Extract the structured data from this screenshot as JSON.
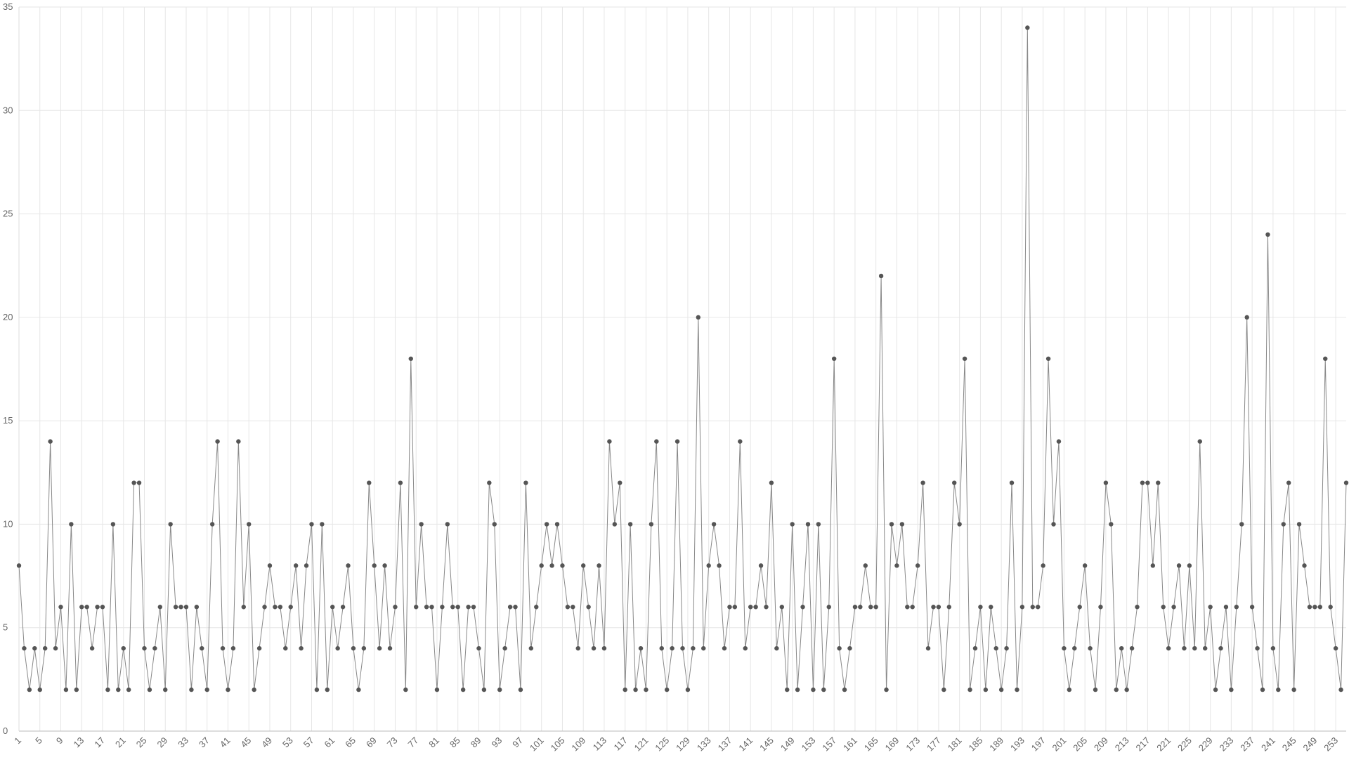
{
  "chart_data": {
    "type": "line",
    "x": [
      1,
      2,
      3,
      4,
      5,
      6,
      7,
      8,
      9,
      10,
      11,
      12,
      13,
      14,
      15,
      16,
      17,
      18,
      19,
      20,
      21,
      22,
      23,
      24,
      25,
      26,
      27,
      28,
      29,
      30,
      31,
      32,
      33,
      34,
      35,
      36,
      37,
      38,
      39,
      40,
      41,
      42,
      43,
      44,
      45,
      46,
      47,
      48,
      49,
      50,
      51,
      52,
      53,
      54,
      55,
      56,
      57,
      58,
      59,
      60,
      61,
      62,
      63,
      64,
      65,
      66,
      67,
      68,
      69,
      70,
      71,
      72,
      73,
      74,
      75,
      76,
      77,
      78,
      79,
      80,
      81,
      82,
      83,
      84,
      85,
      86,
      87,
      88,
      89,
      90,
      91,
      92,
      93,
      94,
      95,
      96,
      97,
      98,
      99,
      100,
      101,
      102,
      103,
      104,
      105,
      106,
      107,
      108,
      109,
      110,
      111,
      112,
      113,
      114,
      115,
      116,
      117,
      118,
      119,
      120,
      121,
      122,
      123,
      124,
      125,
      126,
      127,
      128,
      129,
      130,
      131,
      132,
      133,
      134,
      135,
      136,
      137,
      138,
      139,
      140,
      141,
      142,
      143,
      144,
      145,
      146,
      147,
      148,
      149,
      150,
      151,
      152,
      153,
      154,
      155,
      156,
      157,
      158,
      159,
      160,
      161,
      162,
      163,
      164,
      165,
      166,
      167,
      168,
      169,
      170,
      171,
      172,
      173,
      174,
      175,
      176,
      177,
      178,
      179,
      180,
      181,
      182,
      183,
      184,
      185,
      186,
      187,
      188,
      189,
      190,
      191,
      192,
      193,
      194,
      195,
      196,
      197,
      198,
      199,
      200,
      201,
      202,
      203,
      204,
      205,
      206,
      207,
      208,
      209,
      210,
      211,
      212,
      213,
      214,
      215,
      216,
      217,
      218,
      219,
      220,
      221,
      222,
      223,
      224,
      225,
      226,
      227,
      228,
      229,
      230,
      231,
      232,
      233,
      234,
      235,
      236,
      237,
      238,
      239,
      240,
      241,
      242,
      243,
      244,
      245,
      246,
      247,
      248,
      249,
      250,
      251,
      252,
      253,
      254,
      255
    ],
    "values": [
      8,
      4,
      2,
      4,
      2,
      4,
      14,
      4,
      6,
      2,
      10,
      2,
      6,
      6,
      4,
      6,
      6,
      2,
      10,
      2,
      4,
      2,
      12,
      12,
      4,
      2,
      4,
      6,
      2,
      10,
      6,
      6,
      6,
      2,
      6,
      4,
      2,
      10,
      14,
      4,
      2,
      4,
      14,
      6,
      10,
      2,
      4,
      6,
      8,
      6,
      6,
      4,
      6,
      8,
      4,
      8,
      10,
      2,
      10,
      2,
      6,
      4,
      6,
      8,
      4,
      2,
      4,
      12,
      8,
      4,
      8,
      4,
      6,
      12,
      2,
      18,
      6,
      10,
      6,
      6,
      2,
      6,
      10,
      6,
      6,
      2,
      6,
      6,
      4,
      2,
      12,
      10,
      2,
      4,
      6,
      6,
      2,
      12,
      4,
      6,
      8,
      10,
      8,
      10,
      8,
      6,
      6,
      4,
      8,
      6,
      4,
      8,
      4,
      14,
      10,
      12,
      2,
      10,
      2,
      4,
      2,
      10,
      14,
      4,
      2,
      4,
      14,
      4,
      2,
      4,
      20,
      4,
      8,
      10,
      8,
      4,
      6,
      6,
      14,
      4,
      6,
      6,
      8,
      6,
      12,
      4,
      6,
      2,
      10,
      2,
      6,
      10,
      2,
      10,
      2,
      6,
      18,
      4,
      2,
      4,
      6,
      6,
      8,
      6,
      6,
      22,
      2,
      10,
      8,
      10,
      6,
      6,
      8,
      12,
      4,
      6,
      6,
      2,
      6,
      12,
      10,
      18,
      2,
      4,
      6,
      2,
      6,
      4,
      2,
      4,
      12,
      2,
      6,
      34,
      6,
      6,
      8,
      18,
      10,
      14,
      4,
      2,
      4,
      6,
      8,
      4,
      2,
      6,
      12,
      10,
      2,
      4,
      2,
      4,
      6,
      12,
      12,
      8,
      12,
      6,
      4,
      6,
      8,
      4,
      8,
      4,
      14,
      4,
      6,
      2,
      4,
      6,
      2,
      6,
      10,
      20,
      6,
      4,
      2,
      24,
      4,
      2,
      10,
      12,
      2,
      10,
      8,
      6,
      6,
      6,
      18,
      6,
      4,
      2,
      12
    ],
    "color": "#888888",
    "marker_color": "#555555",
    "xlim": [
      1,
      255
    ],
    "xticks": [
      1,
      5,
      9,
      13,
      17,
      21,
      25,
      29,
      33,
      37,
      41,
      45,
      49,
      53,
      57,
      61,
      65,
      69,
      73,
      77,
      81,
      85,
      89,
      93,
      97,
      101,
      105,
      109,
      113,
      117,
      121,
      125,
      129,
      133,
      137,
      141,
      145,
      149,
      153,
      157,
      161,
      165,
      169,
      173,
      177,
      181,
      185,
      189,
      193,
      197,
      201,
      205,
      209,
      213,
      217,
      221,
      225,
      229,
      233,
      237,
      241,
      245,
      249,
      253
    ],
    "ylim": [
      0,
      35
    ],
    "yticks": [
      0,
      5,
      10,
      15,
      20,
      25,
      30,
      35
    ],
    "grid": true
  }
}
